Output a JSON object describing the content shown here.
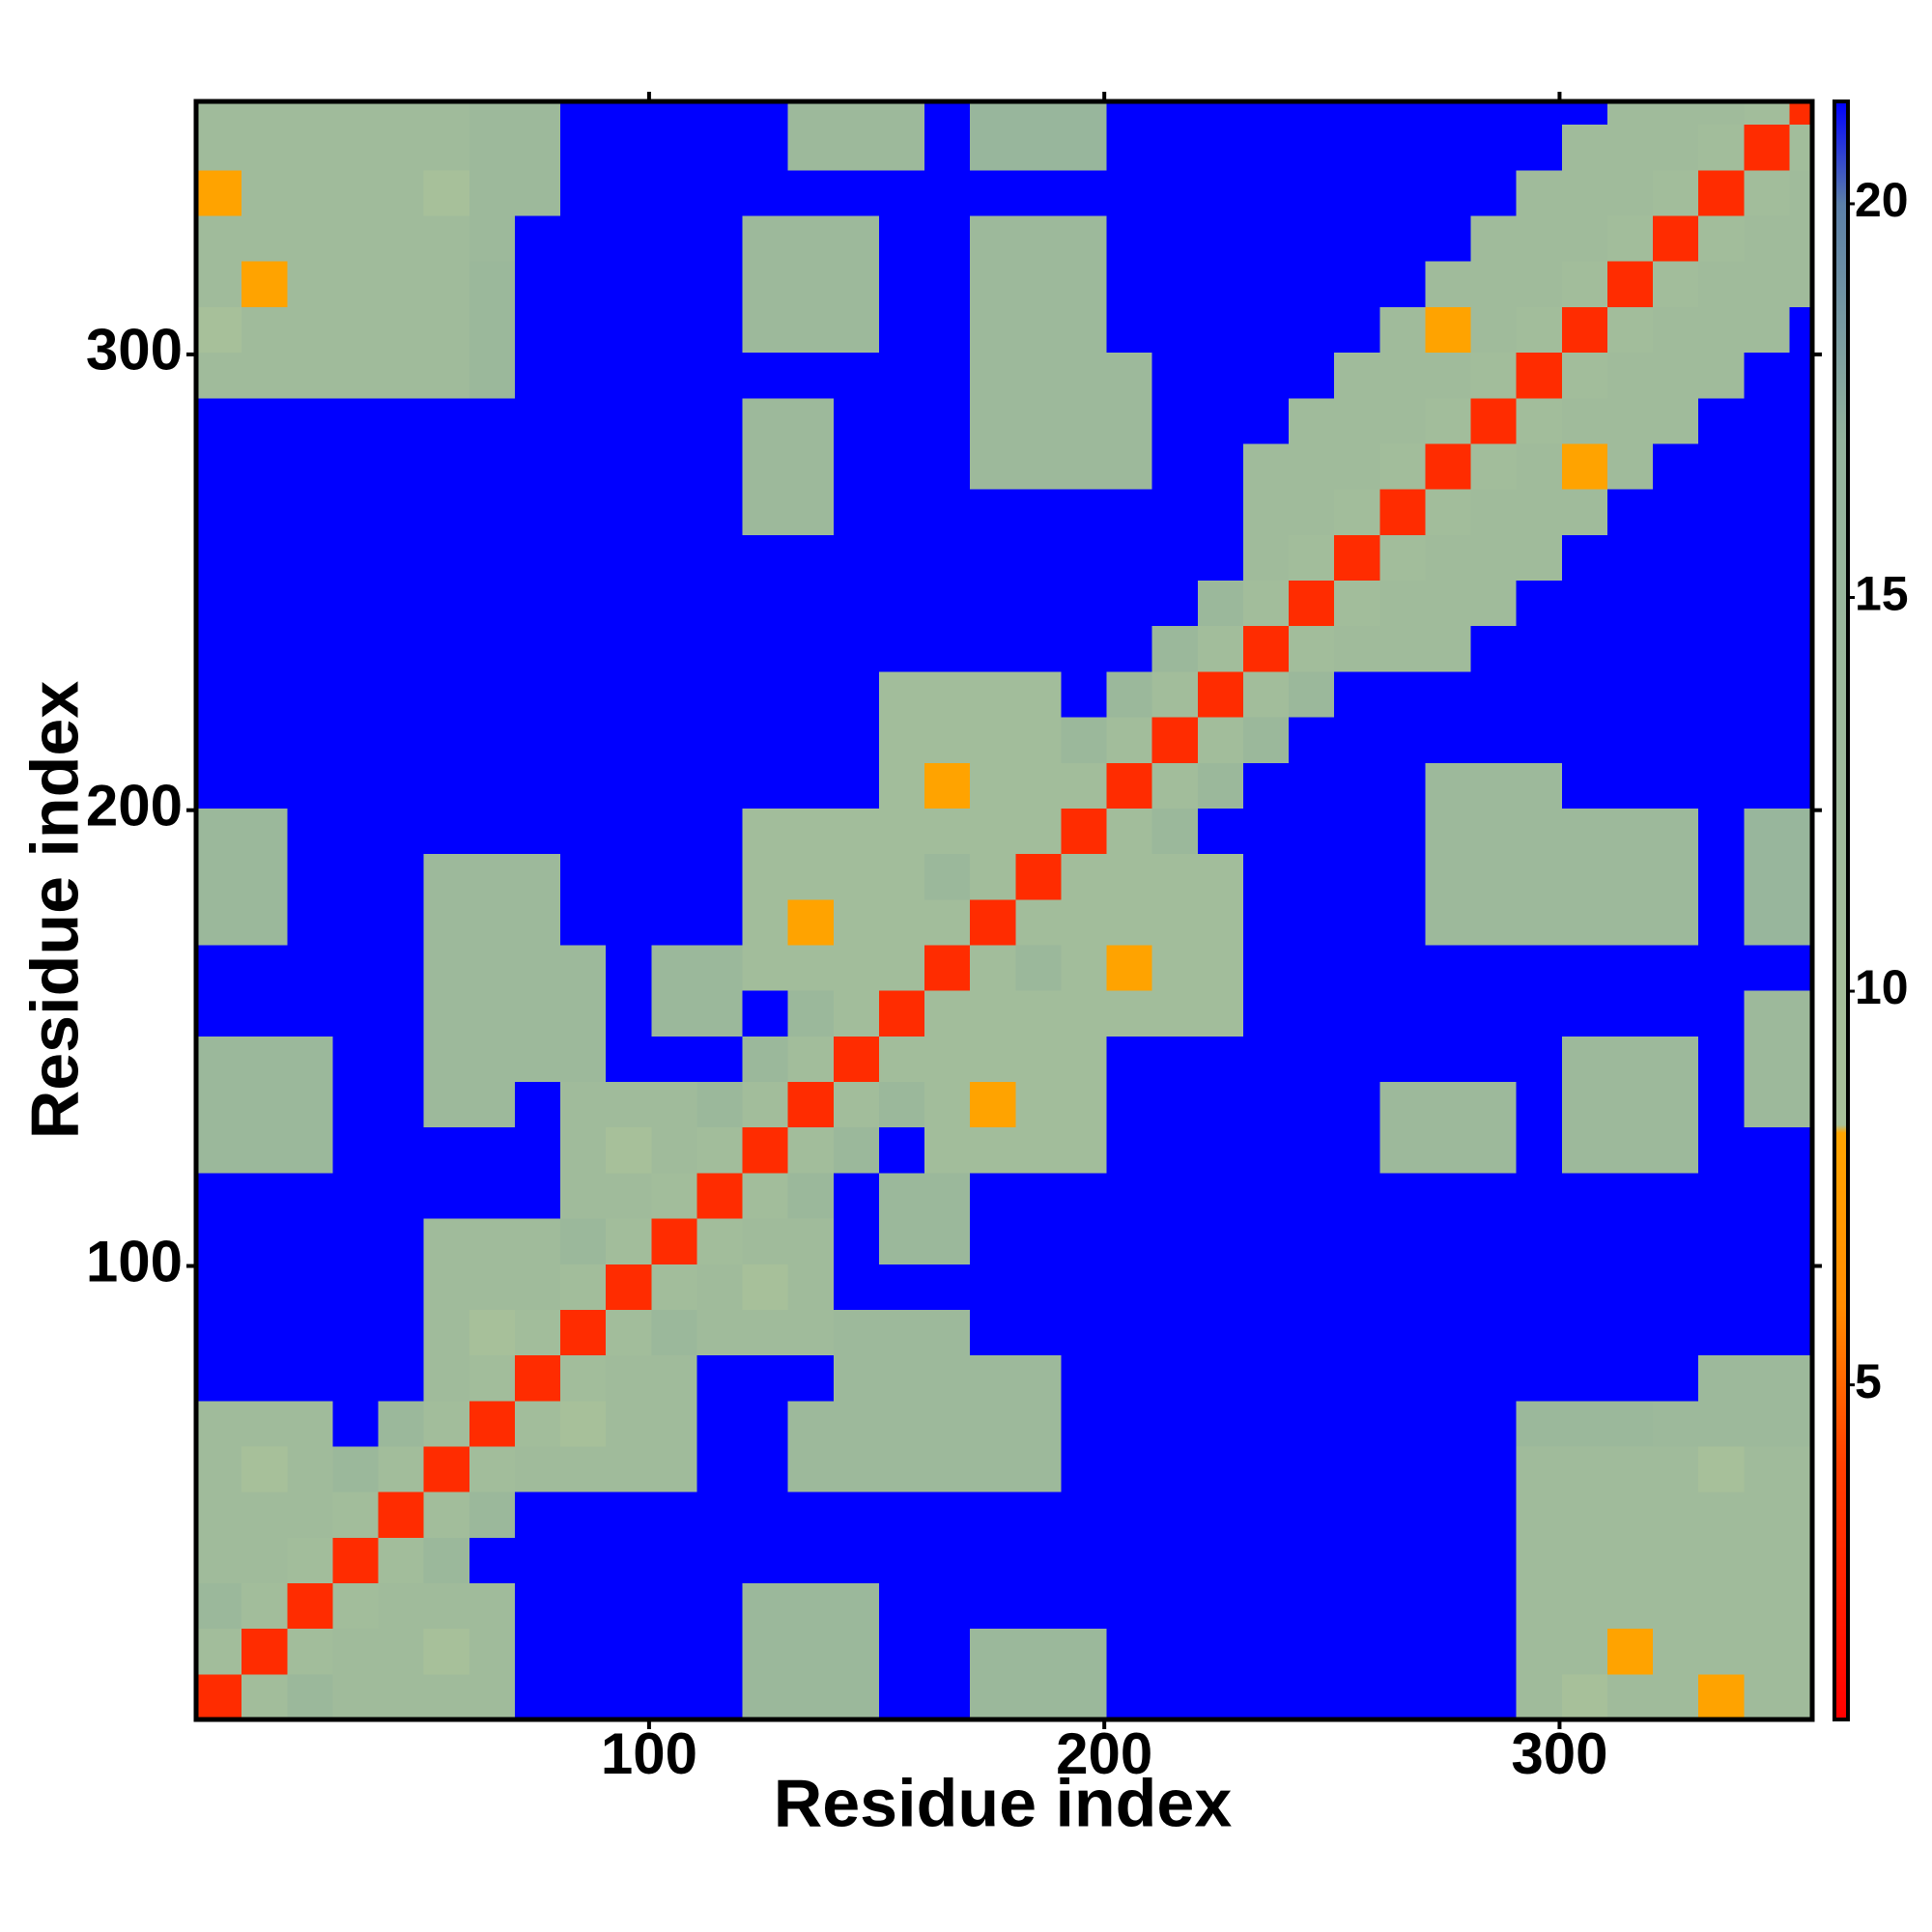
{
  "chart_data": {
    "type": "heatmap",
    "x_label": "Residue index",
    "y_label": "Residue index",
    "x": [
      5.5,
      15.5,
      25.5,
      35.5,
      45.5,
      55.5,
      65.5,
      75.5,
      85.5,
      95.5,
      105.5,
      115.5,
      125.5,
      135.5,
      145.5,
      155.5,
      165.5,
      175.5,
      185.5,
      195.5,
      205.5,
      215.5,
      225.5,
      235.5,
      245.5,
      255.5,
      265.5,
      275.5,
      285.5,
      295.5,
      305.5,
      315.5,
      325.5,
      335.5,
      345.5,
      355.5
    ],
    "y": [
      5.5,
      15.5,
      25.5,
      35.5,
      45.5,
      55.5,
      65.5,
      75.5,
      85.5,
      95.5,
      105.5,
      115.5,
      125.5,
      135.5,
      145.5,
      155.5,
      165.5,
      175.5,
      185.5,
      195.5,
      205.5,
      215.5,
      225.5,
      235.5,
      245.5,
      255.5,
      265.5,
      275.5,
      285.5,
      295.5,
      305.5,
      315.5,
      325.5,
      335.5,
      345.5,
      355.5
    ],
    "z": [
      [
        3,
        11,
        14,
        12,
        12,
        12,
        12,
        22,
        22,
        22,
        22,
        22,
        14,
        14,
        14,
        22,
        22,
        14,
        14,
        14,
        22,
        22,
        22,
        22,
        22,
        22,
        22,
        22,
        22,
        12,
        9,
        12,
        12,
        8,
        12,
        12
      ],
      [
        11,
        3,
        11,
        12,
        12,
        9,
        12,
        22,
        22,
        22,
        22,
        22,
        14,
        14,
        14,
        22,
        22,
        14,
        14,
        14,
        22,
        22,
        22,
        22,
        22,
        22,
        22,
        22,
        22,
        12,
        12,
        8,
        12,
        12,
        12,
        12
      ],
      [
        14,
        11,
        3,
        11,
        12,
        12,
        12,
        22,
        22,
        22,
        22,
        22,
        14,
        14,
        14,
        22,
        22,
        22,
        22,
        22,
        22,
        22,
        22,
        22,
        22,
        22,
        22,
        22,
        22,
        12,
        12,
        12,
        12,
        12,
        12,
        12
      ],
      [
        12,
        12,
        11,
        3,
        11,
        14,
        22,
        22,
        22,
        22,
        22,
        22,
        22,
        22,
        22,
        22,
        22,
        22,
        22,
        22,
        22,
        22,
        22,
        22,
        22,
        22,
        22,
        22,
        22,
        12,
        12,
        12,
        12,
        12,
        12,
        12
      ],
      [
        12,
        12,
        12,
        11,
        3,
        11,
        14,
        22,
        22,
        22,
        22,
        22,
        22,
        22,
        22,
        22,
        22,
        22,
        22,
        22,
        22,
        22,
        22,
        22,
        22,
        22,
        22,
        22,
        22,
        12,
        12,
        12,
        12,
        12,
        12,
        12
      ],
      [
        12,
        9,
        12,
        14,
        11,
        3,
        11,
        12,
        12,
        12,
        12,
        22,
        22,
        13,
        13,
        13,
        13,
        13,
        13,
        22,
        22,
        22,
        22,
        22,
        22,
        22,
        22,
        22,
        22,
        12,
        12,
        12,
        12,
        9,
        12,
        12
      ],
      [
        12,
        12,
        12,
        22,
        14,
        11,
        3,
        11,
        9,
        12,
        12,
        22,
        22,
        13,
        13,
        13,
        13,
        13,
        13,
        22,
        22,
        22,
        22,
        22,
        22,
        22,
        22,
        22,
        22,
        14,
        14,
        14,
        13,
        13,
        13,
        13
      ],
      [
        22,
        22,
        22,
        22,
        22,
        12,
        11,
        3,
        11,
        12,
        12,
        22,
        22,
        22,
        13,
        13,
        13,
        13,
        13,
        22,
        22,
        22,
        22,
        22,
        22,
        22,
        22,
        22,
        22,
        22,
        22,
        22,
        22,
        13,
        13,
        13
      ],
      [
        22,
        22,
        22,
        22,
        22,
        12,
        9,
        11,
        3,
        11,
        14,
        12,
        12,
        12,
        13,
        13,
        13,
        22,
        22,
        22,
        22,
        22,
        22,
        22,
        22,
        22,
        22,
        22,
        22,
        22,
        22,
        22,
        22,
        22,
        22,
        22
      ],
      [
        22,
        22,
        22,
        22,
        22,
        12,
        12,
        12,
        11,
        3,
        11,
        12,
        9,
        12,
        22,
        22,
        22,
        22,
        22,
        22,
        22,
        22,
        22,
        22,
        22,
        22,
        22,
        22,
        22,
        22,
        22,
        22,
        22,
        22,
        22,
        22
      ],
      [
        22,
        22,
        22,
        22,
        22,
        12,
        12,
        12,
        14,
        11,
        3,
        11,
        12,
        12,
        22,
        14,
        14,
        22,
        22,
        22,
        22,
        22,
        22,
        22,
        22,
        22,
        22,
        22,
        22,
        22,
        22,
        22,
        22,
        22,
        22,
        22
      ],
      [
        22,
        22,
        22,
        22,
        22,
        22,
        22,
        22,
        12,
        12,
        11,
        3,
        11,
        14,
        22,
        14,
        14,
        22,
        22,
        22,
        22,
        22,
        22,
        22,
        22,
        22,
        22,
        22,
        22,
        22,
        22,
        22,
        22,
        22,
        22,
        22
      ],
      [
        14,
        14,
        14,
        22,
        22,
        22,
        22,
        22,
        12,
        9,
        12,
        11,
        3,
        11,
        14,
        22,
        11,
        11,
        11,
        11,
        22,
        22,
        22,
        22,
        22,
        22,
        13,
        13,
        13,
        22,
        13,
        13,
        13,
        22,
        22,
        22
      ],
      [
        14,
        14,
        14,
        22,
        22,
        13,
        13,
        22,
        12,
        12,
        12,
        14,
        11,
        3,
        11,
        14,
        11,
        8,
        11,
        11,
        22,
        22,
        22,
        22,
        22,
        22,
        13,
        13,
        13,
        22,
        13,
        13,
        13,
        22,
        13,
        13
      ],
      [
        14,
        14,
        14,
        22,
        22,
        13,
        13,
        13,
        13,
        22,
        22,
        22,
        14,
        11,
        3,
        11,
        11,
        11,
        11,
        11,
        22,
        22,
        22,
        22,
        22,
        22,
        22,
        22,
        22,
        22,
        13,
        13,
        13,
        22,
        13,
        13
      ],
      [
        22,
        22,
        22,
        22,
        22,
        13,
        13,
        13,
        13,
        22,
        14,
        14,
        22,
        14,
        11,
        3,
        11,
        11,
        11,
        11,
        11,
        11,
        11,
        22,
        22,
        22,
        22,
        22,
        22,
        22,
        22,
        22,
        22,
        22,
        13,
        13
      ],
      [
        22,
        22,
        22,
        22,
        22,
        13,
        13,
        13,
        13,
        22,
        14,
        14,
        11,
        11,
        11,
        11,
        3,
        11,
        14,
        11,
        8,
        11,
        11,
        22,
        22,
        22,
        22,
        22,
        22,
        22,
        22,
        22,
        22,
        22,
        22,
        22
      ],
      [
        14,
        14,
        22,
        22,
        22,
        13,
        13,
        13,
        22,
        22,
        22,
        22,
        11,
        8,
        11,
        11,
        11,
        3,
        11,
        11,
        11,
        11,
        11,
        22,
        22,
        22,
        22,
        13,
        13,
        13,
        13,
        13,
        13,
        22,
        15,
        15
      ],
      [
        14,
        14,
        22,
        22,
        22,
        13,
        13,
        13,
        22,
        22,
        22,
        22,
        11,
        11,
        11,
        11,
        14,
        11,
        3,
        11,
        11,
        11,
        11,
        22,
        22,
        22,
        22,
        13,
        13,
        13,
        13,
        13,
        13,
        22,
        15,
        15
      ],
      [
        14,
        14,
        22,
        22,
        22,
        22,
        22,
        22,
        22,
        22,
        22,
        22,
        11,
        11,
        11,
        11,
        11,
        11,
        11,
        3,
        11,
        14,
        22,
        22,
        22,
        22,
        22,
        13,
        13,
        13,
        13,
        13,
        13,
        22,
        15,
        15
      ],
      [
        22,
        22,
        22,
        22,
        22,
        22,
        22,
        22,
        22,
        22,
        22,
        22,
        22,
        22,
        22,
        11,
        8,
        11,
        11,
        11,
        3,
        11,
        14,
        22,
        22,
        22,
        22,
        13,
        13,
        13,
        22,
        22,
        22,
        22,
        22,
        22
      ],
      [
        22,
        22,
        22,
        22,
        22,
        22,
        22,
        22,
        22,
        22,
        22,
        22,
        22,
        22,
        22,
        11,
        11,
        11,
        11,
        14,
        11,
        3,
        11,
        14,
        22,
        22,
        22,
        22,
        22,
        22,
        22,
        22,
        22,
        22,
        22,
        22
      ],
      [
        22,
        22,
        22,
        22,
        22,
        22,
        22,
        22,
        22,
        22,
        22,
        22,
        22,
        22,
        22,
        11,
        11,
        11,
        11,
        22,
        14,
        11,
        3,
        11,
        14,
        22,
        22,
        22,
        22,
        22,
        22,
        22,
        22,
        22,
        22,
        22
      ],
      [
        22,
        22,
        22,
        22,
        22,
        22,
        22,
        22,
        22,
        22,
        22,
        22,
        22,
        22,
        22,
        22,
        22,
        22,
        22,
        22,
        22,
        14,
        11,
        3,
        11,
        12,
        12,
        12,
        22,
        22,
        22,
        22,
        22,
        22,
        22,
        22
      ],
      [
        22,
        22,
        22,
        22,
        22,
        22,
        22,
        22,
        22,
        22,
        22,
        22,
        22,
        22,
        22,
        22,
        22,
        22,
        22,
        22,
        22,
        22,
        14,
        11,
        3,
        11,
        12,
        12,
        12,
        22,
        22,
        22,
        22,
        22,
        22,
        22
      ],
      [
        22,
        22,
        22,
        22,
        22,
        22,
        22,
        22,
        22,
        22,
        22,
        22,
        22,
        22,
        22,
        22,
        22,
        22,
        22,
        22,
        22,
        22,
        22,
        12,
        11,
        3,
        11,
        12,
        12,
        12,
        22,
        22,
        22,
        22,
        22,
        22
      ],
      [
        22,
        22,
        22,
        22,
        22,
        22,
        22,
        22,
        22,
        22,
        22,
        22,
        13,
        13,
        22,
        22,
        22,
        22,
        22,
        22,
        22,
        22,
        22,
        12,
        12,
        11,
        3,
        11,
        12,
        12,
        12,
        22,
        22,
        22,
        22,
        22
      ],
      [
        22,
        22,
        22,
        22,
        22,
        22,
        22,
        22,
        22,
        22,
        22,
        22,
        13,
        13,
        22,
        22,
        22,
        13,
        13,
        13,
        13,
        22,
        22,
        12,
        12,
        12,
        11,
        3,
        11,
        12,
        8,
        12,
        22,
        22,
        22,
        22
      ],
      [
        22,
        22,
        22,
        22,
        22,
        22,
        22,
        22,
        22,
        22,
        22,
        22,
        13,
        13,
        22,
        22,
        22,
        13,
        13,
        13,
        13,
        22,
        22,
        22,
        12,
        12,
        12,
        11,
        3,
        11,
        12,
        12,
        12,
        22,
        22,
        22
      ],
      [
        12,
        12,
        12,
        12,
        12,
        12,
        14,
        22,
        22,
        22,
        22,
        22,
        22,
        22,
        22,
        22,
        22,
        13,
        13,
        13,
        13,
        22,
        22,
        22,
        22,
        12,
        12,
        12,
        11,
        3,
        11,
        12,
        12,
        12,
        22,
        22
      ],
      [
        9,
        12,
        12,
        12,
        12,
        12,
        14,
        22,
        22,
        22,
        22,
        22,
        13,
        13,
        13,
        22,
        22,
        13,
        13,
        13,
        22,
        22,
        22,
        22,
        22,
        22,
        12,
        8,
        12,
        11,
        3,
        11,
        12,
        12,
        12,
        22
      ],
      [
        12,
        8,
        12,
        12,
        12,
        12,
        14,
        22,
        22,
        22,
        22,
        22,
        13,
        13,
        13,
        22,
        22,
        13,
        13,
        13,
        22,
        22,
        22,
        22,
        22,
        22,
        22,
        12,
        12,
        12,
        11,
        3,
        11,
        12,
        12,
        12
      ],
      [
        12,
        12,
        12,
        12,
        12,
        12,
        13,
        22,
        22,
        22,
        22,
        22,
        13,
        13,
        13,
        22,
        22,
        13,
        13,
        13,
        22,
        22,
        22,
        22,
        22,
        22,
        22,
        22,
        12,
        12,
        12,
        11,
        3,
        11,
        12,
        12
      ],
      [
        8,
        12,
        12,
        12,
        12,
        9,
        13,
        13,
        22,
        22,
        22,
        22,
        22,
        22,
        22,
        22,
        22,
        22,
        22,
        22,
        22,
        22,
        22,
        22,
        22,
        22,
        22,
        22,
        22,
        12,
        12,
        12,
        11,
        3,
        11,
        12
      ],
      [
        12,
        12,
        12,
        12,
        12,
        12,
        13,
        13,
        22,
        22,
        22,
        22,
        22,
        13,
        13,
        13,
        22,
        15,
        15,
        15,
        22,
        22,
        22,
        22,
        22,
        22,
        22,
        22,
        22,
        22,
        12,
        12,
        12,
        11,
        3,
        11
      ],
      [
        12,
        12,
        12,
        12,
        12,
        12,
        13,
        13,
        22,
        22,
        22,
        22,
        22,
        13,
        13,
        13,
        22,
        15,
        15,
        15,
        22,
        22,
        22,
        22,
        22,
        22,
        22,
        22,
        22,
        22,
        22,
        12,
        12,
        12,
        11,
        3
      ]
    ],
    "xlim": [
      0.5,
      355.5
    ],
    "ylim": [
      0.5,
      355.5
    ],
    "xticks": [
      100,
      200,
      300
    ],
    "yticks": [
      100,
      200,
      300
    ],
    "colorbar": {
      "zlim": [
        0.75,
        21.3
      ],
      "ticks": [
        5,
        10,
        15,
        20
      ],
      "colorscale": [
        [
          0.75,
          "#ff0000"
        ],
        [
          4,
          "#ff4000"
        ],
        [
          6,
          "#ff8c00"
        ],
        [
          8.2,
          "#ffa500"
        ],
        [
          8.3,
          "#a9c19a"
        ],
        [
          17,
          "#93b39c"
        ],
        [
          20,
          "#5b7fa8"
        ],
        [
          21.3,
          "#0000ff"
        ]
      ]
    }
  }
}
